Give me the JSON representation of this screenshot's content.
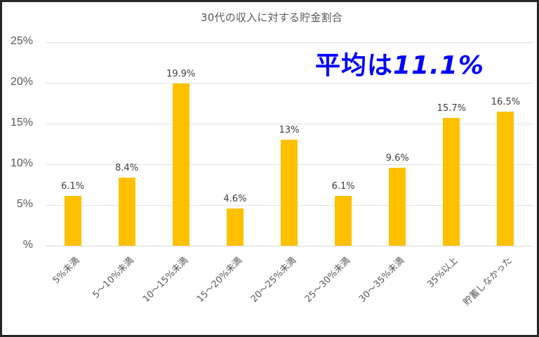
{
  "chart_data": {
    "type": "bar",
    "title": "30代の収入に対する貯金割合",
    "annotation": "平均は11.1%",
    "annotation_color": "#0000ff",
    "categories": [
      "5%未満",
      "5～10%未満",
      "10～15%未満",
      "15～20%未満",
      "20～25%未満",
      "25～30%未満",
      "30～35%未満",
      "35%以上",
      "貯蓄しなかった"
    ],
    "values": [
      6.1,
      8.4,
      19.9,
      4.6,
      13,
      6.1,
      9.6,
      15.7,
      16.5
    ],
    "data_labels": [
      "6.1%",
      "8.4%",
      "19.9%",
      "4.6%",
      "13%",
      "6.1%",
      "9.6%",
      "15.7%",
      "16.5%"
    ],
    "xlabel": "",
    "ylabel": "",
    "ylim": [
      0,
      25
    ],
    "yticks": [
      0,
      5,
      10,
      15,
      20,
      25
    ],
    "ytick_labels": [
      "%",
      "5%",
      "10%",
      "15%",
      "20%",
      "25%"
    ],
    "grid": true,
    "legend": "none",
    "bar_color": "#ffc000"
  },
  "title": "30代の収入に対する貯金割合",
  "annotation": {
    "prefix": "平均は",
    "value": "11.1%"
  },
  "yaxis": {
    "ticks": [
      "25%",
      "20%",
      "15%",
      "10%",
      "5%",
      "%"
    ]
  },
  "bars": [
    {
      "category": "5%未満",
      "label": "6.1%"
    },
    {
      "category": "5～10%未満",
      "label": "8.4%"
    },
    {
      "category": "10～15%未満",
      "label": "19.9%"
    },
    {
      "category": "15～20%未満",
      "label": "4.6%"
    },
    {
      "category": "20～25%未満",
      "label": "13%"
    },
    {
      "category": "25～30%未満",
      "label": "6.1%"
    },
    {
      "category": "30～35%未満",
      "label": "9.6%"
    },
    {
      "category": "35%以上",
      "label": "15.7%"
    },
    {
      "category": "貯蓄しなかった",
      "label": "16.5%"
    }
  ]
}
